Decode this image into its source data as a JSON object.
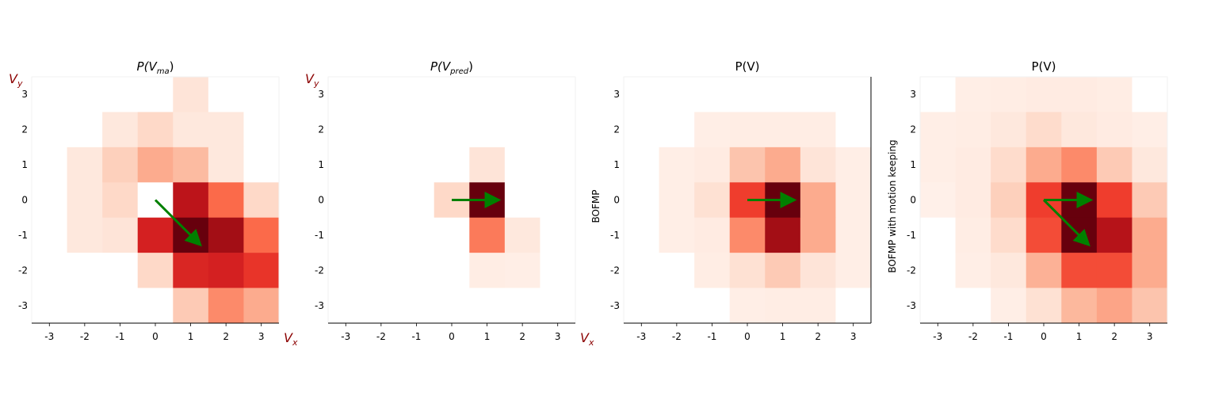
{
  "chart_data": [
    {
      "type": "heatmap",
      "title": "P(V",
      "title_sub": "ma",
      "title_end": ")",
      "xlabel": "V",
      "xlabel_sub": "x",
      "ylabel": "V",
      "ylabel_sub": "y",
      "side_label": "",
      "x_ticks": [
        "-3",
        "-2",
        "-1",
        "0",
        "1",
        "2",
        "3"
      ],
      "y_ticks": [
        "3",
        "2",
        "1",
        "0",
        "-1",
        "-2",
        "-3"
      ],
      "x_range": [
        -3.5,
        3.5
      ],
      "y_range": [
        -3.5,
        3.5
      ],
      "colormap": "Reds",
      "cells": [
        [
          0.0,
          0.0,
          0.0,
          0.0,
          0.1,
          0.0,
          0.0
        ],
        [
          0.0,
          0.0,
          0.08,
          0.15,
          0.08,
          0.08,
          0.0
        ],
        [
          0.0,
          0.08,
          0.18,
          0.3,
          0.25,
          0.08,
          0.0
        ],
        [
          0.0,
          0.08,
          0.15,
          0.0,
          0.8,
          0.5,
          0.15
        ],
        [
          0.0,
          0.08,
          0.1,
          0.72,
          1.0,
          0.88,
          0.5
        ],
        [
          0.0,
          0.0,
          0.0,
          0.15,
          0.7,
          0.72,
          0.65
        ],
        [
          0.0,
          0.0,
          0.0,
          0.0,
          0.2,
          0.4,
          0.3
        ]
      ],
      "arrows": [
        {
          "x0": 0,
          "y0": 0,
          "x1": 1.25,
          "y1": -1.25
        }
      ],
      "arrow_color": "#008000"
    },
    {
      "type": "heatmap",
      "title": "P(V",
      "title_sub": "pred",
      "title_end": ")",
      "xlabel": "V",
      "xlabel_sub": "x",
      "ylabel": "V",
      "ylabel_sub": "y",
      "side_label": "",
      "x_ticks": [
        "-3",
        "-2",
        "-1",
        "0",
        "1",
        "2",
        "3"
      ],
      "y_ticks": [
        "3",
        "2",
        "1",
        "0",
        "-1",
        "-2",
        "-3"
      ],
      "x_range": [
        -3.5,
        3.5
      ],
      "y_range": [
        -3.5,
        3.5
      ],
      "colormap": "Reds",
      "cells": [
        [
          0.0,
          0.0,
          0.0,
          0.0,
          0.0,
          0.0,
          0.0
        ],
        [
          0.0,
          0.0,
          0.0,
          0.0,
          0.0,
          0.0,
          0.0
        ],
        [
          0.0,
          0.0,
          0.0,
          0.0,
          0.1,
          0.0,
          0.0
        ],
        [
          0.0,
          0.0,
          0.0,
          0.15,
          1.0,
          0.0,
          0.0
        ],
        [
          0.0,
          0.0,
          0.0,
          0.0,
          0.45,
          0.08,
          0.0
        ],
        [
          0.0,
          0.0,
          0.0,
          0.0,
          0.05,
          0.04,
          0.0
        ],
        [
          0.0,
          0.0,
          0.0,
          0.0,
          0.0,
          0.0,
          0.0
        ]
      ],
      "arrows": [
        {
          "x0": 0,
          "y0": 0,
          "x1": 1.3,
          "y1": 0
        }
      ],
      "arrow_color": "#008000"
    },
    {
      "type": "heatmap",
      "title": "P(V)",
      "title_sub": "",
      "title_end": "",
      "xlabel": "",
      "xlabel_sub": "",
      "ylabel": "",
      "ylabel_sub": "",
      "side_label": "BOFMP",
      "x_ticks": [
        "-3",
        "-2",
        "-1",
        "0",
        "1",
        "2",
        "3"
      ],
      "y_ticks": [
        "3",
        "2",
        "1",
        "0",
        "-1",
        "-2",
        "-3"
      ],
      "x_range": [
        -3.5,
        3.5
      ],
      "y_range": [
        -3.5,
        3.5
      ],
      "colormap": "Reds",
      "cells": [
        [
          0.0,
          0.0,
          0.0,
          0.0,
          0.0,
          0.0,
          0.0
        ],
        [
          0.0,
          0.0,
          0.04,
          0.05,
          0.05,
          0.05,
          0.0
        ],
        [
          0.0,
          0.04,
          0.06,
          0.22,
          0.3,
          0.1,
          0.04
        ],
        [
          0.0,
          0.04,
          0.12,
          0.62,
          1.0,
          0.3,
          0.04
        ],
        [
          0.0,
          0.04,
          0.06,
          0.4,
          0.88,
          0.3,
          0.04
        ],
        [
          0.0,
          0.0,
          0.05,
          0.12,
          0.2,
          0.1,
          0.04
        ],
        [
          0.0,
          0.0,
          0.0,
          0.04,
          0.05,
          0.05,
          0.0
        ]
      ],
      "arrows": [
        {
          "x0": 0,
          "y0": 0,
          "x1": 1.3,
          "y1": 0
        }
      ],
      "arrow_color": "#008000"
    },
    {
      "type": "heatmap",
      "title": "P(V)",
      "title_sub": "",
      "title_end": "",
      "xlabel": "",
      "xlabel_sub": "",
      "ylabel": "",
      "ylabel_sub": "",
      "side_label": "BOFMP with motion keeping",
      "x_ticks": [
        "-3",
        "-2",
        "-1",
        "0",
        "1",
        "2",
        "3"
      ],
      "y_ticks": [
        "3",
        "2",
        "1",
        "0",
        "-1",
        "-2",
        "-3"
      ],
      "x_range": [
        -3.5,
        3.5
      ],
      "y_range": [
        -3.5,
        3.5
      ],
      "colormap": "Reds",
      "cells": [
        [
          0.0,
          0.04,
          0.05,
          0.06,
          0.06,
          0.05,
          0.0
        ],
        [
          0.04,
          0.05,
          0.08,
          0.14,
          0.08,
          0.06,
          0.04
        ],
        [
          0.04,
          0.06,
          0.14,
          0.3,
          0.4,
          0.2,
          0.08
        ],
        [
          0.03,
          0.06,
          0.18,
          0.62,
          1.0,
          0.62,
          0.2
        ],
        [
          0.0,
          0.05,
          0.14,
          0.58,
          1.0,
          0.82,
          0.3
        ],
        [
          0.0,
          0.04,
          0.08,
          0.28,
          0.58,
          0.58,
          0.3
        ],
        [
          0.0,
          0.0,
          0.04,
          0.12,
          0.26,
          0.32,
          0.22
        ]
      ],
      "arrows": [
        {
          "x0": 0,
          "y0": 0,
          "x1": 1.3,
          "y1": 0
        },
        {
          "x0": 0,
          "y0": 0,
          "x1": 1.25,
          "y1": -1.25
        }
      ],
      "arrow_color": "#008000"
    }
  ]
}
